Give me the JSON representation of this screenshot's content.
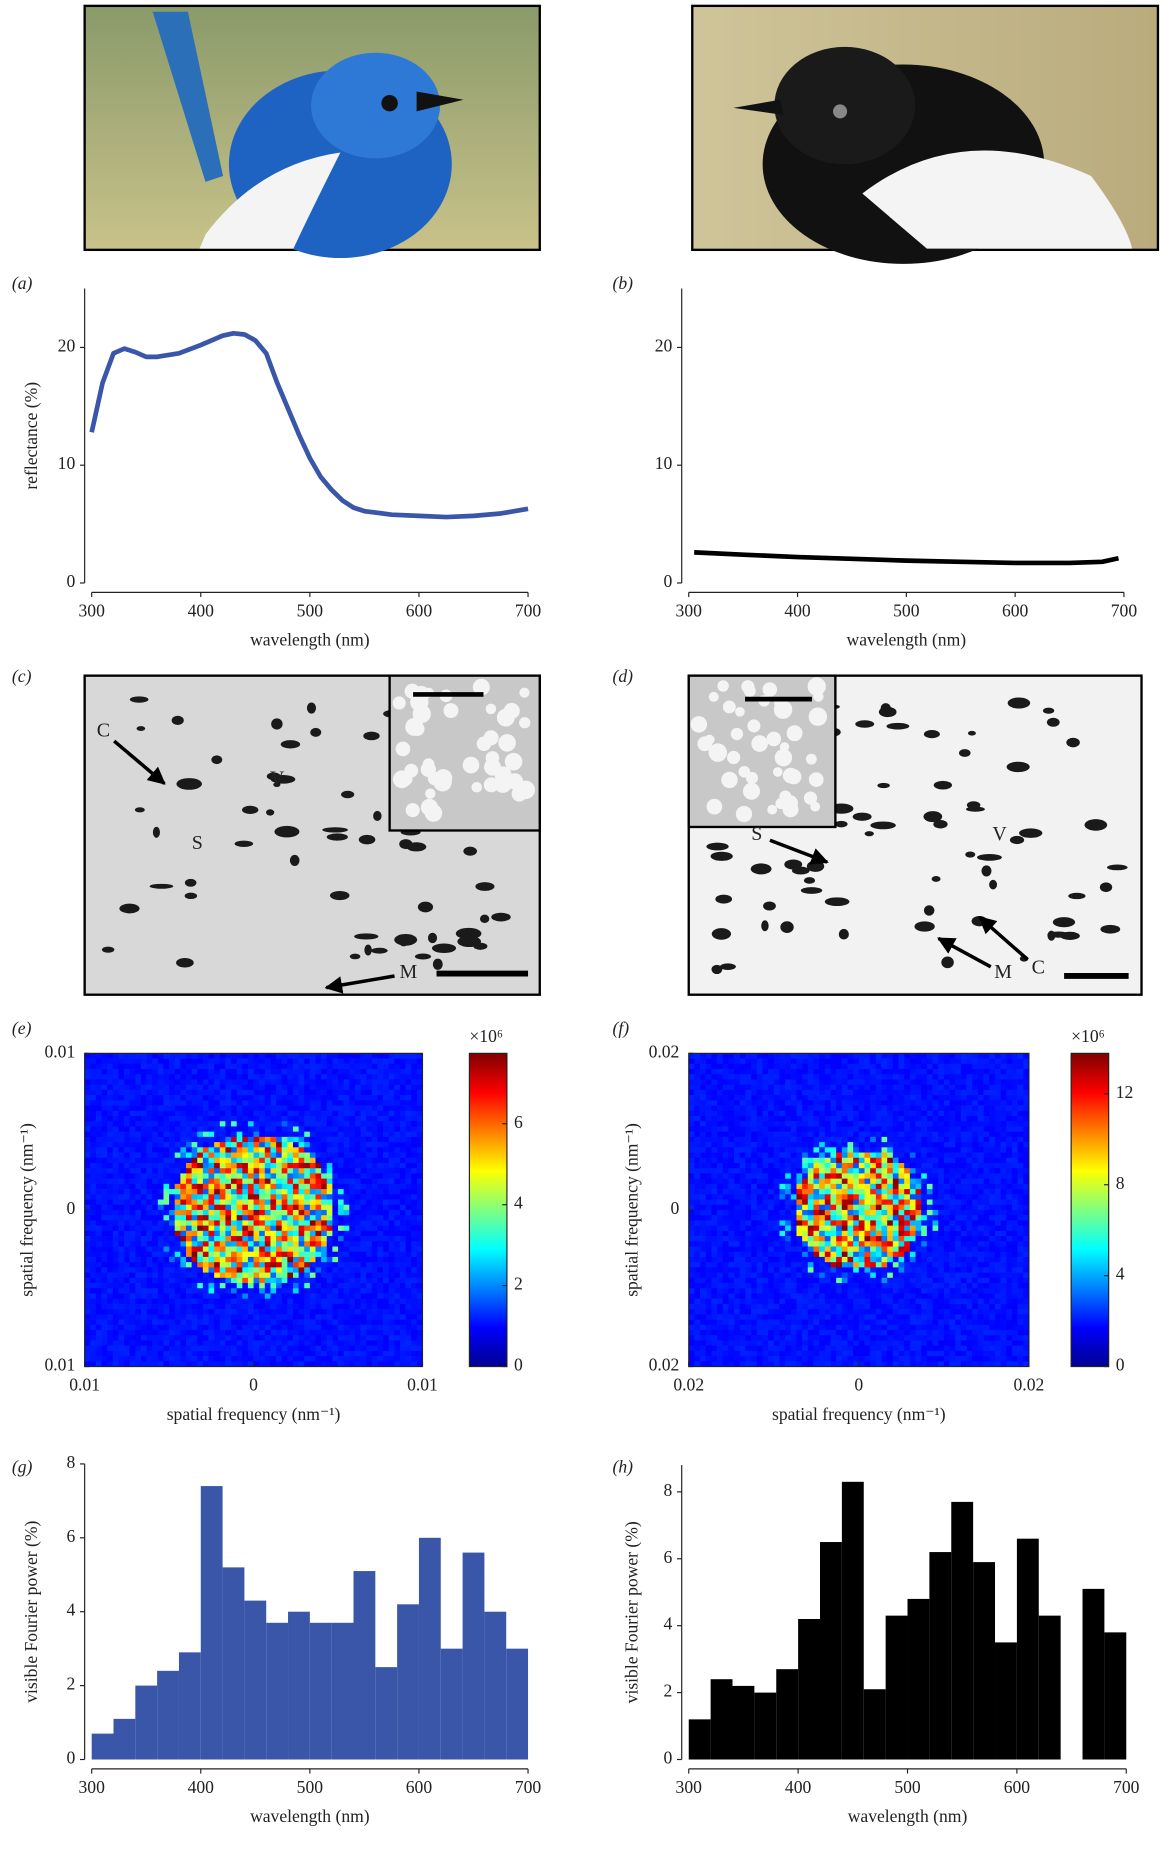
{
  "chart_data": [
    {
      "type": "line",
      "panel": "(a)",
      "xlabel": "wavelength (nm)",
      "ylabel": "reflectance (%)",
      "color": "#3a56a8",
      "x": [
        300,
        310,
        320,
        330,
        340,
        350,
        360,
        380,
        400,
        420,
        430,
        440,
        450,
        460,
        470,
        480,
        490,
        500,
        510,
        520,
        530,
        540,
        550,
        575,
        600,
        625,
        650,
        675,
        700
      ],
      "values": [
        12.8,
        17,
        19.5,
        19.9,
        19.6,
        19.2,
        19.2,
        19.5,
        20.2,
        21,
        21.2,
        21.1,
        20.6,
        19.5,
        17,
        14.8,
        12.6,
        10.6,
        9,
        7.9,
        7,
        6.4,
        6.1,
        5.8,
        5.7,
        5.6,
        5.7,
        5.9,
        6.3
      ],
      "xlim": [
        300,
        700
      ],
      "xticks": [
        300,
        400,
        500,
        600,
        700
      ],
      "ylim": [
        0,
        25
      ],
      "yticks": [
        0,
        10,
        20
      ]
    },
    {
      "type": "line",
      "panel": "(b)",
      "xlabel": "wavelength (nm)",
      "color": "#000000",
      "x": [
        305,
        350,
        400,
        450,
        500,
        550,
        600,
        650,
        680,
        695
      ],
      "values": [
        2.6,
        2.4,
        2.2,
        2.05,
        1.9,
        1.8,
        1.7,
        1.7,
        1.8,
        2.1
      ],
      "xlim": [
        300,
        700
      ],
      "xticks": [
        300,
        400,
        500,
        600,
        700
      ],
      "ylim": [
        0,
        25
      ],
      "yticks": [
        0,
        10,
        20
      ]
    },
    {
      "type": "heatmap",
      "panel": "(e)",
      "xlabel": "spatial frequency (nm⁻¹)",
      "ylabel": "spatial frequency (nm⁻¹)",
      "multiplier": "×10⁶",
      "xlim": [
        -0.01,
        0.01
      ],
      "xticks": [
        {
          "value": -0.01,
          "label": "0.01"
        },
        0,
        0.01
      ],
      "ylim": [
        -0.01,
        0.01
      ],
      "yticks": [
        {
          "value": -0.01,
          "label": "0.01"
        },
        0,
        0.01
      ],
      "clim": [
        0,
        7.74
      ],
      "cticks": [
        0,
        2,
        4,
        6
      ]
    },
    {
      "type": "heatmap",
      "panel": "(f)",
      "xlabel": "spatial frequency (nm⁻¹)",
      "ylabel": "spatial frequency (nm⁻¹)",
      "multiplier": "×10⁶",
      "xlim": [
        -0.02,
        0.02
      ],
      "xticks": [
        {
          "value": -0.02,
          "label": "0.02"
        },
        0,
        0.02
      ],
      "ylim": [
        -0.02,
        0.02
      ],
      "yticks": [
        {
          "value": -0.02,
          "label": "0.02"
        },
        0,
        0.02
      ],
      "clim": [
        0,
        13.78
      ],
      "cticks": [
        0,
        4,
        8,
        12
      ]
    },
    {
      "type": "histogram",
      "panel": "(g)",
      "xlabel": "wavelength (nm)",
      "ylabel": "visible Fourier power (%)",
      "color": "#3a56a8",
      "bins": [
        300,
        320,
        340,
        360,
        380,
        400,
        420,
        440,
        460,
        480,
        500,
        520,
        540,
        560,
        580,
        600,
        620,
        640,
        660,
        680,
        700
      ],
      "values": [
        0.7,
        1.1,
        2.0,
        2.4,
        2.9,
        7.4,
        5.2,
        4.3,
        3.7,
        4.0,
        3.7,
        3.7,
        5.1,
        2.5,
        4.2,
        6.0,
        3.0,
        5.6,
        4.0,
        3.0
      ],
      "xlim": [
        300,
        700
      ],
      "xticks": [
        300,
        400,
        500,
        600,
        700
      ],
      "ylim": [
        0,
        8
      ],
      "yticks": [
        0,
        2,
        4,
        6,
        8
      ]
    },
    {
      "type": "histogram",
      "panel": "(h)",
      "xlabel": "wavelength (nm)",
      "ylabel": "visible Fourier power (%)",
      "color": "#000000",
      "bins": [
        300,
        320,
        340,
        360,
        380,
        400,
        420,
        440,
        460,
        480,
        500,
        520,
        540,
        560,
        580,
        600,
        620,
        640,
        660,
        680,
        700
      ],
      "values": [
        1.2,
        2.4,
        2.2,
        2.0,
        2.7,
        4.2,
        6.5,
        8.3,
        2.1,
        4.3,
        4.8,
        6.2,
        7.7,
        5.9,
        3.5,
        6.6,
        4.3,
        0,
        5.1,
        3.8
      ],
      "xlim": [
        300,
        700
      ],
      "xticks": [
        300,
        400,
        500,
        600,
        700
      ],
      "ylim": [
        0,
        8.8
      ],
      "yticks": [
        0,
        2,
        4,
        6,
        8
      ]
    }
  ],
  "micrographs": [
    {
      "panel": "(c)",
      "labels": [
        "C",
        "S",
        "V",
        "M"
      ]
    },
    {
      "panel": "(d)",
      "labels": [
        "S",
        "V",
        "M",
        "C"
      ]
    }
  ]
}
